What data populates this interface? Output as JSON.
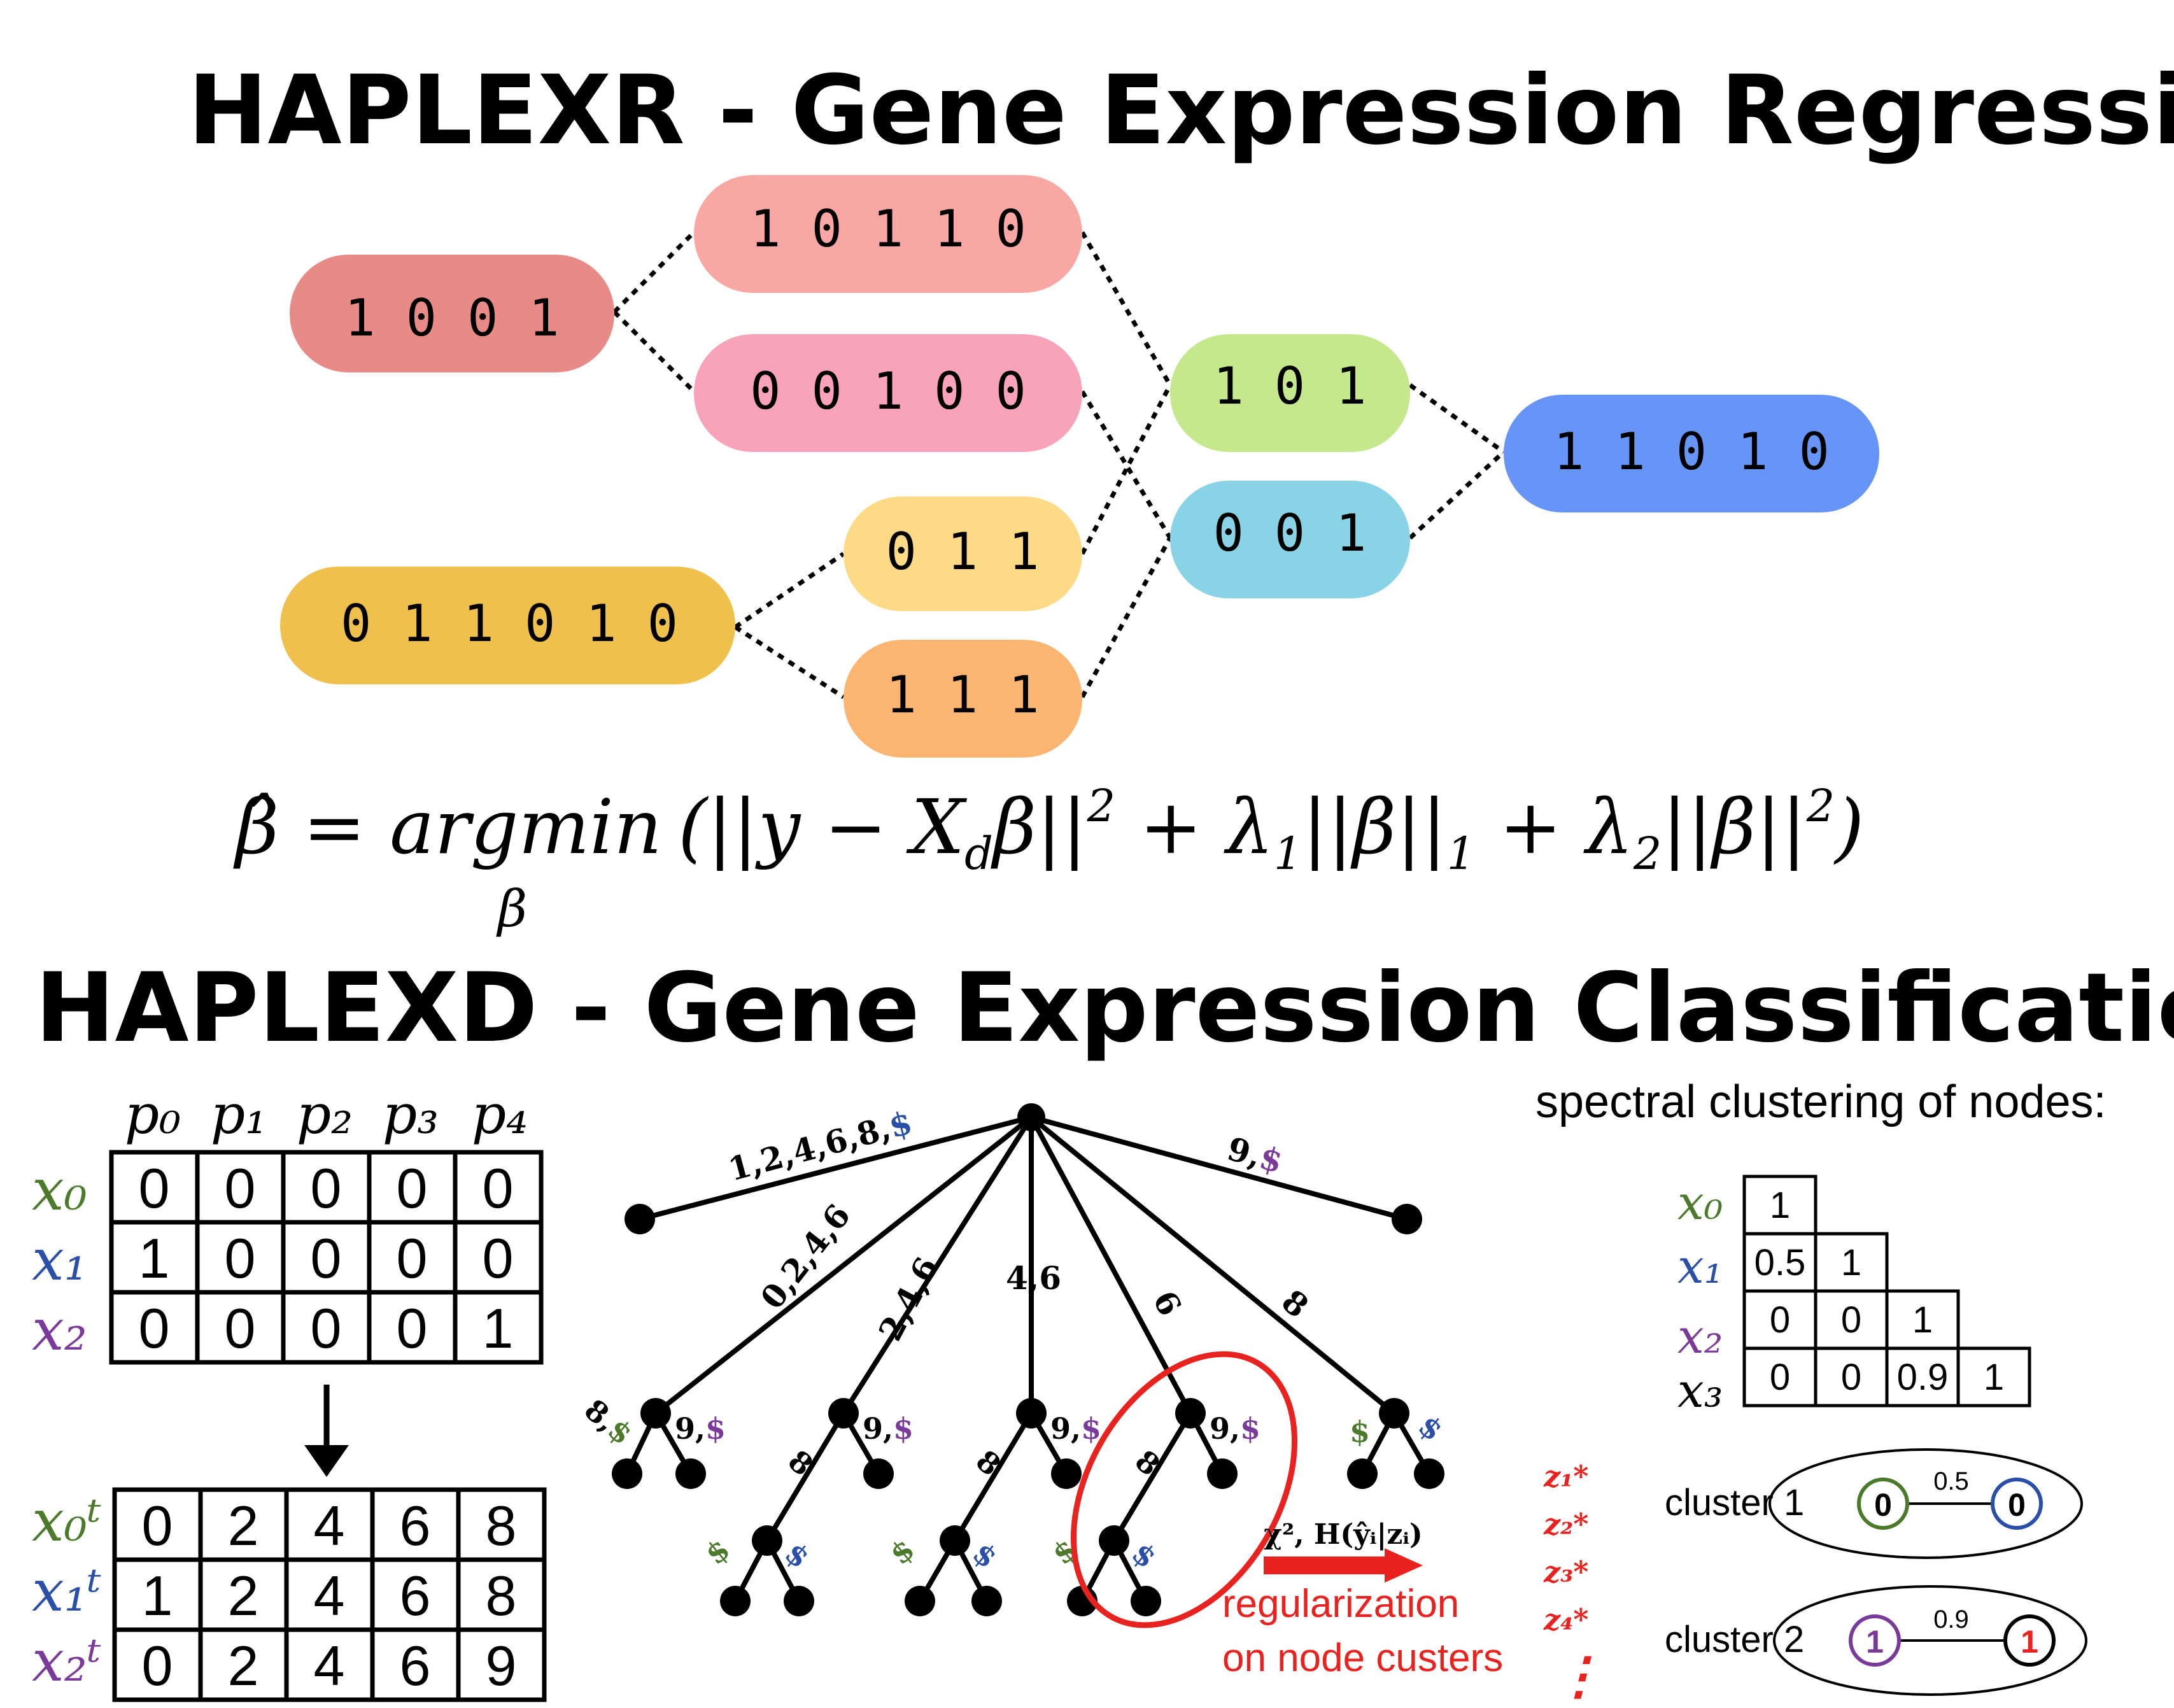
{
  "titles": {
    "regression": "HAPLEXR - Gene Expression Regression:",
    "classification": "HAPLEXD - Gene Expression Classification:"
  },
  "pills": [
    {
      "id": "a",
      "text": "1 0 0 1",
      "color": "#e88a86"
    },
    {
      "id": "b",
      "text": "1 0 1 1 0",
      "color": "#f9a7a4"
    },
    {
      "id": "c",
      "text": "0 0 1 0 0",
      "color": "#f9a3bb"
    },
    {
      "id": "d",
      "text": "0 1 1 0 1 0",
      "color": "#f0c04d"
    },
    {
      "id": "e",
      "text": "0 1 1",
      "color": "#fdda86"
    },
    {
      "id": "f",
      "text": "1 1 1",
      "color": "#fcb471"
    },
    {
      "id": "g",
      "text": "1 0 1",
      "color": "#c5e88c"
    },
    {
      "id": "h",
      "text": "0 0 1",
      "color": "#89d3e6"
    },
    {
      "id": "i",
      "text": "1 1 0 1 0",
      "color": "#6795f7"
    }
  ],
  "formula": {
    "lhs": "β̂ = argmin",
    "sub": "β",
    "body": "(||y − X",
    "d": "d",
    "body2": "β||",
    "sq": "2",
    "plus1": " + λ",
    "one": "1",
    "l1": "||β||",
    "one2": "1",
    "plus2": " + λ",
    "two": "2",
    "l2": "||β||",
    "sq2": "2",
    "close": ")"
  },
  "matrix_top": {
    "col_headers": [
      "p₀",
      "p₁",
      "p₂",
      "p₃",
      "p₄"
    ],
    "row_headers": [
      "x₀",
      "x₁",
      "x₂"
    ],
    "row_colors": [
      "#4a7a2a",
      "#2a4fa8",
      "#7a3a9a"
    ],
    "rows": [
      [
        "0",
        "0",
        "0",
        "0",
        "0"
      ],
      [
        "1",
        "0",
        "0",
        "0",
        "0"
      ],
      [
        "0",
        "0",
        "0",
        "0",
        "1"
      ]
    ]
  },
  "matrix_bottom": {
    "row_headers": [
      "x₀ᵗ",
      "x₁ᵗ",
      "x₂ᵗ"
    ],
    "rows": [
      [
        "0",
        "2",
        "4",
        "6",
        "8"
      ],
      [
        "1",
        "2",
        "4",
        "6",
        "8"
      ],
      [
        "0",
        "2",
        "4",
        "6",
        "9"
      ]
    ]
  },
  "tree": {
    "edge_labels": [
      "1,2,4,6,8,",
      "9,",
      "0,2,4,6",
      "2,4,6",
      "4,6",
      "6",
      "8"
    ],
    "dollar": "$",
    "small_labels": [
      "8,",
      "9,",
      "8",
      "9,",
      "8",
      "9,",
      "8",
      "9,",
      "$",
      "$",
      "$",
      "$",
      "$",
      "$",
      "$",
      "$"
    ],
    "annotation": "χ², H(ŷᵢ|zᵢ)",
    "regularization_line1": "regularization",
    "regularization_line2": "on node custers",
    "z_labels": [
      "z₁*",
      "z₂*",
      "z₃*",
      "z₄*"
    ],
    "ellipsis": "⋮"
  },
  "spectral": {
    "heading": "spectral clustering of nodes:",
    "row_headers": [
      "x₀",
      "x₁",
      "x₂",
      "x₃"
    ],
    "rows": [
      [
        "1"
      ],
      [
        "0.5",
        "1"
      ],
      [
        "0",
        "0",
        "1"
      ],
      [
        "0",
        "0",
        "0.9",
        "1"
      ]
    ],
    "cluster1": {
      "label": "cluster 1",
      "left": "0",
      "right": "0",
      "weight": "0.5"
    },
    "cluster2": {
      "label": "cluster 2",
      "left": "1",
      "right": "1",
      "weight": "0.9"
    }
  },
  "colors": {
    "red": "#e8231f",
    "green": "#4a7a2a",
    "blue": "#2a4fa8",
    "purple": "#7a3a9a"
  }
}
